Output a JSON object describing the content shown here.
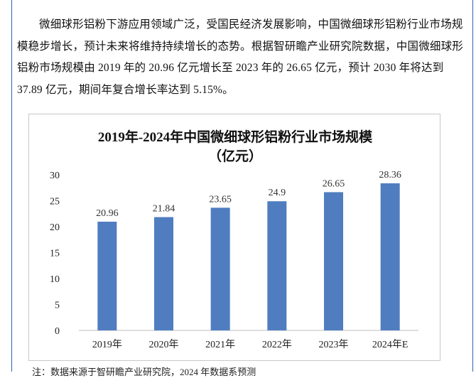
{
  "paragraph": "微细球形铝粉下游应用领域广泛，受国民经济发展影响，中国微细球形铝粉行业市场规模稳步增长，预计未来将维持持续增长的态势。根据智研瞻产业研究院数据，中国微细球形铝粉市场规模由 2019 年的 20.96 亿元增长至 2023 年的 26.65 亿元，预计 2030 年将达到 37.89 亿元，期间年复合增长率达到 5.15%。",
  "chart_data": {
    "type": "bar",
    "title": "2019年-2024年中国微细球形铝粉行业市场规模",
    "subtitle": "（亿元）",
    "categories": [
      "2019年",
      "2020年",
      "2021年",
      "2022年",
      "2023年",
      "2024年E"
    ],
    "values": [
      20.96,
      21.84,
      23.65,
      24.9,
      26.65,
      28.36
    ],
    "value_labels": [
      "20.96",
      "21.84",
      "23.65",
      "24.9",
      "26.65",
      "28.36"
    ],
    "ylim": [
      0,
      30
    ],
    "yticks": [
      0,
      5,
      10,
      15,
      20,
      25,
      30
    ],
    "xlabel": "",
    "ylabel": "",
    "grid": false,
    "bar_color": "#4f7dc0"
  },
  "footnote": "注：数据来源于智研瞻产业研究院，2024 年数据系预测"
}
